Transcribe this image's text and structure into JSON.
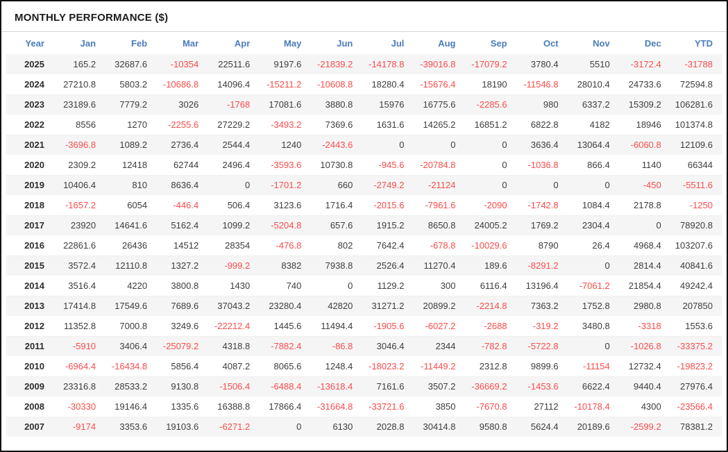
{
  "panel": {
    "title": "MONTHLY PERFORMANCE ($)",
    "accent_color": "#4a7cba",
    "negative_color": "#fb4b4b",
    "stripe_color": "#f5f5f5"
  },
  "table": {
    "columns": [
      "Year",
      "Jan",
      "Feb",
      "Mar",
      "Apr",
      "May",
      "Jun",
      "Jul",
      "Aug",
      "Sep",
      "Oct",
      "Nov",
      "Dec",
      "YTD"
    ],
    "rows": [
      {
        "year": "2025",
        "values": [
          "165.2",
          "32687.6",
          "-10354",
          "22511.6",
          "9197.6",
          "-21839.2",
          "-14178.8",
          "-39016.8",
          "-17079.2",
          "3780.4",
          "5510",
          "-3172.4",
          "-31788"
        ]
      },
      {
        "year": "2024",
        "values": [
          "27210.8",
          "5803.2",
          "-10686.8",
          "14096.4",
          "-15211.2",
          "-10608.8",
          "18280.4",
          "-15676.4",
          "18190",
          "-11546.8",
          "28010.4",
          "24733.6",
          "72594.8"
        ]
      },
      {
        "year": "2023",
        "values": [
          "23189.6",
          "7779.2",
          "3026",
          "-1768",
          "17081.6",
          "3880.8",
          "15976",
          "16775.6",
          "-2285.6",
          "980",
          "6337.2",
          "15309.2",
          "106281.6"
        ]
      },
      {
        "year": "2022",
        "values": [
          "8556",
          "1270",
          "-2255.6",
          "27229.2",
          "-3493.2",
          "7369.6",
          "1631.6",
          "14265.2",
          "16851.2",
          "6822.8",
          "4182",
          "18946",
          "101374.8"
        ]
      },
      {
        "year": "2021",
        "values": [
          "-3696.8",
          "1089.2",
          "2736.4",
          "2544.4",
          "1240",
          "-2443.6",
          "0",
          "0",
          "0",
          "3636.4",
          "13064.4",
          "-6060.8",
          "12109.6"
        ]
      },
      {
        "year": "2020",
        "values": [
          "2309.2",
          "12418",
          "62744",
          "2496.4",
          "-3593.6",
          "10730.8",
          "-945.6",
          "-20784.8",
          "0",
          "-1036.8",
          "866.4",
          "1140",
          "66344"
        ]
      },
      {
        "year": "2019",
        "values": [
          "10406.4",
          "810",
          "8636.4",
          "0",
          "-1701.2",
          "660",
          "-2749.2",
          "-21124",
          "0",
          "0",
          "0",
          "-450",
          "-5511.6"
        ]
      },
      {
        "year": "2018",
        "values": [
          "-1657.2",
          "6054",
          "-446.4",
          "506.4",
          "3123.6",
          "1716.4",
          "-2015.6",
          "-7961.6",
          "-2090",
          "-1742.8",
          "1084.4",
          "2178.8",
          "-1250"
        ]
      },
      {
        "year": "2017",
        "values": [
          "23920",
          "14641.6",
          "5162.4",
          "1099.2",
          "-5204.8",
          "657.6",
          "1915.2",
          "8650.8",
          "24005.2",
          "1769.2",
          "2304.4",
          "0",
          "78920.8"
        ]
      },
      {
        "year": "2016",
        "values": [
          "22861.6",
          "26436",
          "14512",
          "28354",
          "-476.8",
          "802",
          "7642.4",
          "-678.8",
          "-10029.6",
          "8790",
          "26.4",
          "4968.4",
          "103207.6"
        ]
      },
      {
        "year": "2015",
        "values": [
          "3572.4",
          "12110.8",
          "1327.2",
          "-999.2",
          "8382",
          "7938.8",
          "2526.4",
          "11270.4",
          "189.6",
          "-8291.2",
          "0",
          "2814.4",
          "40841.6"
        ]
      },
      {
        "year": "2014",
        "values": [
          "3516.4",
          "4220",
          "3800.8",
          "1430",
          "740",
          "0",
          "1129.2",
          "300",
          "6116.4",
          "13196.4",
          "-7061.2",
          "21854.4",
          "49242.4"
        ]
      },
      {
        "year": "2013",
        "values": [
          "17414.8",
          "17549.6",
          "7689.6",
          "37043.2",
          "23280.4",
          "42820",
          "31271.2",
          "20899.2",
          "-2214.8",
          "7363.2",
          "1752.8",
          "2980.8",
          "207850"
        ]
      },
      {
        "year": "2012",
        "values": [
          "11352.8",
          "7000.8",
          "3249.6",
          "-22212.4",
          "1445.6",
          "11494.4",
          "-1905.6",
          "-6027.2",
          "-2688",
          "-319.2",
          "3480.8",
          "-3318",
          "1553.6"
        ]
      },
      {
        "year": "2011",
        "values": [
          "-5910",
          "3406.4",
          "-25079.2",
          "4318.8",
          "-7882.4",
          "-86.8",
          "3046.4",
          "2344",
          "-782.8",
          "-5722.8",
          "0",
          "-1026.8",
          "-33375.2"
        ]
      },
      {
        "year": "2010",
        "values": [
          "-6964.4",
          "-16434.8",
          "5856.4",
          "4087.2",
          "8065.6",
          "1248.4",
          "-18023.2",
          "-11449.2",
          "2312.8",
          "9899.6",
          "-11154",
          "12732.4",
          "-19823.2"
        ]
      },
      {
        "year": "2009",
        "values": [
          "23316.8",
          "28533.2",
          "9130.8",
          "-1506.4",
          "-6488.4",
          "-13618.4",
          "7161.6",
          "3507.2",
          "-36669.2",
          "-1453.6",
          "6622.4",
          "9440.4",
          "27976.4"
        ]
      },
      {
        "year": "2008",
        "values": [
          "-30330",
          "19146.4",
          "1335.6",
          "16388.8",
          "17866.4",
          "-31664.8",
          "-33721.6",
          "3850",
          "-7670.8",
          "27112",
          "-10178.4",
          "4300",
          "-23566.4"
        ]
      },
      {
        "year": "2007",
        "values": [
          "-9174",
          "3353.6",
          "19103.6",
          "-6271.2",
          "0",
          "6130",
          "2028.8",
          "30414.8",
          "9580.8",
          "5624.4",
          "20189.6",
          "-2599.2",
          "78381.2"
        ]
      }
    ]
  }
}
